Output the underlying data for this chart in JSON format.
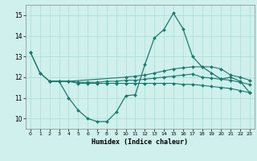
{
  "xlabel": "Humidex (Indice chaleur)",
  "background_color": "#cff0ec",
  "grid_color": "#aaddd8",
  "line_color": "#1a7a6e",
  "xlim": [
    -0.5,
    23.5
  ],
  "ylim": [
    9.5,
    15.5
  ],
  "yticks": [
    10,
    11,
    12,
    13,
    14,
    15
  ],
  "xticks": [
    0,
    1,
    2,
    3,
    4,
    5,
    6,
    7,
    8,
    9,
    10,
    11,
    12,
    13,
    14,
    15,
    16,
    17,
    18,
    19,
    20,
    21,
    22,
    23
  ],
  "line1_x": [
    0,
    1,
    2,
    3,
    4,
    5,
    6,
    7,
    8,
    9,
    10,
    11,
    12,
    13,
    14,
    15,
    16,
    17,
    18,
    19,
    20,
    21,
    22,
    23
  ],
  "line1_y": [
    13.2,
    12.2,
    11.8,
    11.8,
    11.0,
    10.4,
    10.0,
    9.85,
    9.85,
    10.3,
    11.1,
    11.15,
    12.6,
    13.9,
    14.3,
    15.1,
    14.35,
    13.0,
    12.5,
    12.2,
    11.9,
    12.0,
    11.8,
    11.25
  ],
  "line2_x": [
    0,
    1,
    2,
    3,
    4,
    10,
    11,
    12,
    13,
    14,
    15,
    16,
    17,
    18,
    19,
    20,
    21,
    22,
    23
  ],
  "line2_y": [
    13.2,
    12.2,
    11.8,
    11.8,
    11.8,
    12.0,
    12.05,
    12.1,
    12.2,
    12.3,
    12.4,
    12.45,
    12.5,
    12.5,
    12.5,
    12.4,
    12.1,
    12.0,
    11.85
  ],
  "line3_x": [
    2,
    3,
    4,
    5,
    6,
    7,
    8,
    9,
    10,
    11,
    12,
    13,
    14,
    15,
    16,
    17,
    18,
    19,
    20,
    21,
    22,
    23
  ],
  "line3_y": [
    11.8,
    11.8,
    11.8,
    11.75,
    11.75,
    11.75,
    11.8,
    11.8,
    11.85,
    11.85,
    11.9,
    11.95,
    12.0,
    12.05,
    12.1,
    12.15,
    12.0,
    11.95,
    11.9,
    11.85,
    11.75,
    11.65
  ],
  "line4_x": [
    2,
    3,
    4,
    5,
    6,
    7,
    8,
    9,
    10,
    11,
    12,
    13,
    14,
    15,
    16,
    17,
    18,
    19,
    20,
    21,
    22,
    23
  ],
  "line4_y": [
    11.8,
    11.8,
    11.8,
    11.7,
    11.7,
    11.7,
    11.7,
    11.7,
    11.7,
    11.7,
    11.7,
    11.7,
    11.7,
    11.7,
    11.65,
    11.65,
    11.6,
    11.55,
    11.5,
    11.45,
    11.35,
    11.25
  ]
}
